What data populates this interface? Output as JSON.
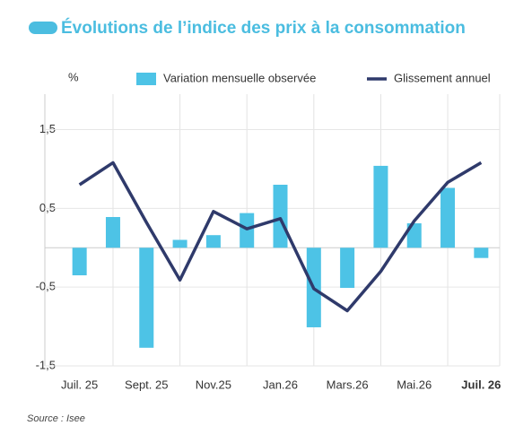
{
  "chart_data": {
    "type": "bar_line",
    "title": "Évolutions de l’indice des prix à la consommation",
    "y_unit": "%",
    "source": "Source : Isee",
    "categories": [
      "Juil. 25",
      null,
      "Sept. 25",
      null,
      "Nov.25",
      null,
      "Jan.26",
      null,
      "Mars.26",
      null,
      "Mai.26",
      null,
      "Juil. 26"
    ],
    "series": [
      {
        "name": "Variation mensuelle observée",
        "type": "bar",
        "color": "#4dc3e6",
        "values": [
          -0.35,
          0.39,
          -1.27,
          0.1,
          0.16,
          0.44,
          0.8,
          -1.01,
          -0.51,
          1.04,
          0.31,
          0.76,
          -0.13
        ]
      },
      {
        "name": "Glissement annuel",
        "type": "line",
        "color": "#2f3a6b",
        "values": [
          0.8,
          1.08,
          0.32,
          -0.41,
          0.46,
          0.24,
          0.37,
          -0.52,
          -0.8,
          -0.3,
          0.34,
          0.83,
          1.08
        ]
      }
    ],
    "ylim": [
      -1.5,
      1.95
    ],
    "yticks": [
      {
        "value": 1.5,
        "label": "1,5"
      },
      {
        "value": 0.5,
        "label": "0,5"
      },
      {
        "value": -0.5,
        "label": "-0,5"
      },
      {
        "value": -1.5,
        "label": "-1,5"
      }
    ]
  }
}
